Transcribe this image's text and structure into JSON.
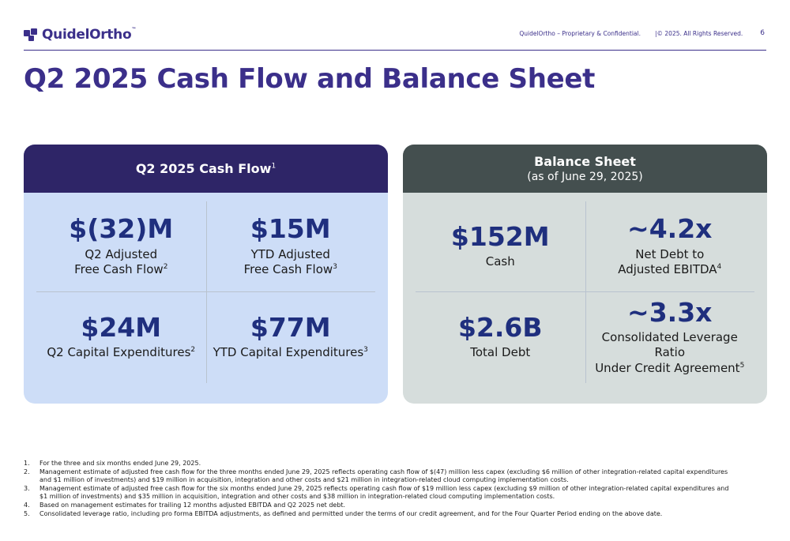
{
  "header": {
    "logo_text": "QuidelOrtho",
    "logo_tm": "™",
    "confidential": "QuidelOrtho – Proprietary & Confidential.",
    "copyright": "|© 2025. All Rights Reserved.",
    "page_number": "6"
  },
  "title": "Q2 2025 Cash Flow and Balance Sheet",
  "cash_flow": {
    "heading": "Q2 2025 Cash Flow",
    "heading_sup": "1",
    "cells": [
      {
        "value": "$(32)M",
        "line1": "Q2 Adjusted",
        "line2": "Free Cash Flow",
        "sup": "2"
      },
      {
        "value": "$15M",
        "line1": "YTD Adjusted",
        "line2": "Free Cash Flow",
        "sup": "3"
      },
      {
        "value": "$24M",
        "line1": "",
        "line2": "Q2 Capital Expenditures",
        "sup": "2"
      },
      {
        "value": "$77M",
        "line1": "",
        "line2": "YTD Capital Expenditures",
        "sup": "3"
      }
    ]
  },
  "balance_sheet": {
    "heading": "Balance Sheet",
    "subheading": "(as of June 29, 2025)",
    "cells": [
      {
        "value": "$152M",
        "line1": "",
        "line2": "Cash",
        "sup": ""
      },
      {
        "value": "~4.2x",
        "line1": "Net Debt to",
        "line2": "Adjusted EBITDA",
        "sup": "4"
      },
      {
        "value": "$2.6B",
        "line1": "",
        "line2": "Total Debt",
        "sup": ""
      },
      {
        "value": "~3.3x",
        "line1": "Consolidated Leverage Ratio",
        "line2": "Under Credit Agreement",
        "sup": "5"
      }
    ]
  },
  "footnotes": [
    {
      "num": "1.",
      "text": "For the three and six months ended June 29, 2025."
    },
    {
      "num": "2.",
      "text": "Management estimate of adjusted free cash flow for the three months ended June 29, 2025 reflects operating cash flow of $(47) million less capex (excluding $6 million of other integration-related capital expenditures and $1 million of investments) and $19 million in acquisition, integration and other costs and $21 million in integration-related cloud computing implementation costs."
    },
    {
      "num": "3.",
      "text": "Management estimate of adjusted free cash flow for the six months ended June 29, 2025 reflects operating cash flow of $19 million less capex (excluding $9 million of other integration-related capital expenditures and $1 million of investments) and $35 million in acquisition, integration and other costs and $38 million in integration-related cloud computing implementation costs."
    },
    {
      "num": "4.",
      "text": "Based on management estimates for trailing 12 months adjusted EBITDA and Q2 2025 net debt."
    },
    {
      "num": "5.",
      "text": "Consolidated leverage ratio, including pro forma EBITDA adjustments, as defined and permitted under the terms of our credit agreement, and for the Four Quarter Period ending on the above date."
    }
  ],
  "colors": {
    "brand": "#3b2f8a",
    "cash_flow_header": "#2e2567",
    "cash_flow_body": "#cdddf7",
    "balance_header": "#444f4f",
    "balance_body": "#d6dddc",
    "metric": "#1f2f7e"
  }
}
